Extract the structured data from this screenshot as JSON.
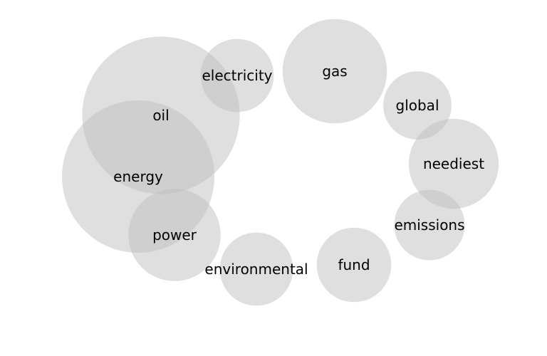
{
  "chart_data": {
    "type": "bubble",
    "title": "",
    "xlabel": "",
    "ylabel": "",
    "grid": false,
    "legend": "none",
    "bubble_color": "#bfbfbf",
    "label_color": "#000000",
    "points": [
      {
        "label": "oil",
        "size": 38400
      },
      {
        "label": "energy",
        "size": 36000
      },
      {
        "label": "gas",
        "size": 16900
      },
      {
        "label": "power",
        "size": 13200
      },
      {
        "label": "neediest",
        "size": 12500
      },
      {
        "label": "electricity",
        "size": 8300
      },
      {
        "label": "environmental",
        "size": 8300
      },
      {
        "label": "fund",
        "size": 8600
      },
      {
        "label": "emissions",
        "size": 7700
      },
      {
        "label": "global",
        "size": 7200
      }
    ]
  }
}
